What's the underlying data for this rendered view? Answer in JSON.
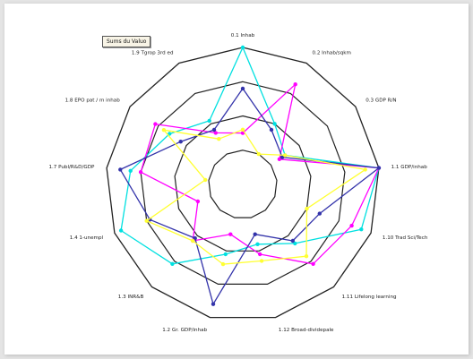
{
  "legend_button": "Sums du Valuo",
  "chart_data": {
    "type": "radar",
    "axes": [
      "0.1 Inhab",
      "0.2 Inhab/sqkm",
      "0.3 GDP R/N",
      "1.1 GDP/inhab",
      "1.10 Trad Sci/Tech",
      "1.11 Lifelong learning",
      "1.12 Broad-dividepale",
      "1.2 Gr. GDP/inhab",
      "1.3 INR&B",
      "1.4 1-unempl",
      "1.7 Publ/R&D/GDP",
      "1.8 EPO pat / m inhab",
      "1.9 Tgrop 3rd ed"
    ],
    "range": [
      0,
      4
    ],
    "rings": [
      1,
      2,
      3,
      4
    ],
    "series": [
      {
        "color": "#00e0e0",
        "values": [
          4.0,
          2.0,
          1.5,
          4.0,
          3.7,
          2.3,
          1.8,
          2.1,
          3.1,
          3.8,
          3.3,
          2.6,
          2.1
        ]
      },
      {
        "color": "#ff00ff",
        "values": [
          1.5,
          3.3,
          1.3,
          4.0,
          3.4,
          3.1,
          2.1,
          1.5,
          2.2,
          1.4,
          3.0,
          3.1,
          1.7
        ]
      },
      {
        "color": "#3333aa",
        "values": [
          2.8,
          1.8,
          1.4,
          4.0,
          2.4,
          2.2,
          1.5,
          3.6,
          2.1,
          2.9,
          3.6,
          2.2,
          1.8
        ]
      },
      {
        "color": "#ffff33",
        "values": [
          1.6,
          1.0,
          1.5,
          3.6,
          2.0,
          2.8,
          2.3,
          2.4,
          2.2,
          3.0,
          1.1,
          2.8,
          1.5
        ]
      }
    ]
  }
}
